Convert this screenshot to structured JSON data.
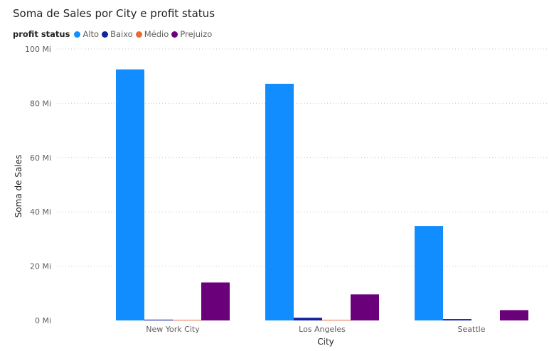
{
  "chart_data": {
    "type": "bar",
    "title": "Soma de Sales por City e profit status",
    "legend_title": "profit status",
    "legend_position": "top-left",
    "xlabel": "City",
    "ylabel": "Soma de Sales",
    "categories": [
      "New York City",
      "Los Angeles",
      "Seattle"
    ],
    "series": [
      {
        "name": "Alto",
        "color": "#118DFF",
        "values": [
          92.5,
          87.2,
          34.8
        ]
      },
      {
        "name": "Baixo",
        "color": "#12239E",
        "values": [
          0.3,
          1.0,
          0.5
        ]
      },
      {
        "name": "Médio",
        "color": "#E66C37",
        "values": [
          0.2,
          0.2,
          0.0
        ]
      },
      {
        "name": "Prejuizo",
        "color": "#6B007B",
        "values": [
          14.0,
          9.6,
          3.8
        ]
      }
    ],
    "ylim": [
      0,
      100
    ],
    "yticks": [
      0,
      20,
      40,
      60,
      80,
      100
    ],
    "ytick_labels": [
      "0 Mi",
      "20 Mi",
      "40 Mi",
      "60 Mi",
      "80 Mi",
      "100 Mi"
    ],
    "grid": true
  }
}
